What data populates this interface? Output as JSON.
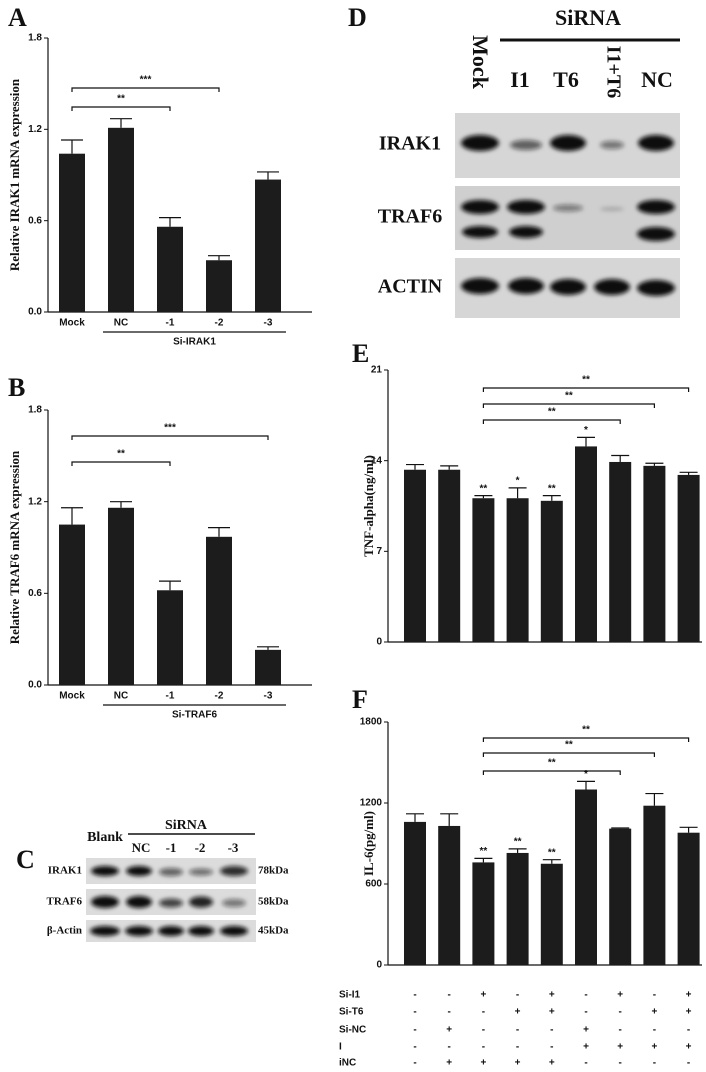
{
  "chart_data": [
    {
      "type": "bar",
      "panel": "A",
      "ylabel": "Relative IRAK1 mRNA expression",
      "color": "#1c1c1c",
      "categories": [
        "Mock",
        "NC",
        "-1",
        "-2",
        "-3"
      ],
      "values": [
        1.04,
        1.21,
        0.56,
        0.34,
        0.87
      ],
      "errors": [
        0.09,
        0.06,
        0.06,
        0.03,
        0.05
      ],
      "ylim": [
        0,
        1.8
      ],
      "yticks": [
        {
          "value": 0,
          "label": "0.0"
        },
        0.6,
        1.2,
        1.8
      ],
      "brackets": [
        {
          "label": "***",
          "from": 0,
          "to": 3
        },
        {
          "label": "**",
          "from": 0,
          "to": 2
        }
      ],
      "group": {
        "label": "Si-IRAK1",
        "from": 1,
        "to": 4
      }
    },
    {
      "type": "bar",
      "panel": "B",
      "ylabel": "Relative TRAF6 mRNA expression",
      "color": "#1c1c1c",
      "categories": [
        "Mock",
        "NC",
        "-1",
        "-2",
        "-3"
      ],
      "values": [
        1.05,
        1.16,
        0.62,
        0.97,
        0.23
      ],
      "errors": [
        0.11,
        0.04,
        0.06,
        0.06,
        0.02
      ],
      "ylim": [
        0,
        1.8
      ],
      "yticks": [
        {
          "value": 0,
          "label": "0.0"
        },
        0.6,
        1.2,
        1.8
      ],
      "brackets": [
        {
          "label": "***",
          "from": 0,
          "to": 4
        },
        {
          "label": "**",
          "from": 0,
          "to": 2
        }
      ],
      "group": {
        "label": "Si-TRAF6",
        "from": 1,
        "to": 4
      }
    },
    {
      "type": "bar",
      "panel": "E",
      "ylabel": "TNF-alpha(ng/ml)",
      "color": "#1c1c1c",
      "categories": [
        null,
        null,
        null,
        null,
        null,
        null,
        null,
        null,
        null
      ],
      "values": [
        13.3,
        13.3,
        11.1,
        11.1,
        10.9,
        15.1,
        13.9,
        13.6,
        12.9
      ],
      "errors": [
        0.4,
        0.3,
        0.2,
        0.8,
        0.4,
        0.7,
        0.5,
        0.2,
        0.2
      ],
      "star_labels": [
        null,
        null,
        "**",
        "*",
        "**",
        "*",
        null,
        null,
        null
      ],
      "ylim": [
        0,
        21
      ],
      "yticks": [
        0,
        7,
        14,
        21
      ],
      "brackets": [
        {
          "label": "**",
          "from": 2,
          "to": 8
        },
        {
          "label": "**",
          "from": 2,
          "to": 7
        },
        {
          "label": "**",
          "from": 2,
          "to": 6
        }
      ]
    },
    {
      "type": "bar",
      "panel": "F",
      "ylabel": "IL-6(pg/ml)",
      "color": "#1c1c1c",
      "categories": [
        null,
        null,
        null,
        null,
        null,
        null,
        null,
        null,
        null
      ],
      "values": [
        1060,
        1030,
        760,
        830,
        750,
        1300,
        1010,
        1180,
        980
      ],
      "errors": [
        60,
        90,
        30,
        30,
        30,
        60,
        5,
        90,
        40
      ],
      "star_labels": [
        null,
        null,
        "**",
        "**",
        "**",
        "*",
        null,
        null,
        null
      ],
      "ylim": [
        0,
        1800
      ],
      "yticks": [
        0,
        600,
        1200,
        1800
      ],
      "brackets": [
        {
          "label": "**",
          "from": 2,
          "to": 8
        },
        {
          "label": "**",
          "from": 2,
          "to": 7
        },
        {
          "label": "**",
          "from": 2,
          "to": 6
        }
      ],
      "condition_table": {
        "rows": [
          {
            "name": "Si-I1",
            "signs": [
              "-",
              "-",
              "+",
              "-",
              "+",
              "-",
              "+",
              "-",
              "+"
            ]
          },
          {
            "name": "Si-T6",
            "signs": [
              "-",
              "-",
              "-",
              "+",
              "+",
              "-",
              "-",
              "+",
              "+"
            ]
          },
          {
            "name": "Si-NC",
            "signs": [
              "-",
              "+",
              "-",
              "-",
              "-",
              "+",
              "-",
              "-",
              "-"
            ]
          },
          {
            "name": "I",
            "signs": [
              "-",
              "-",
              "-",
              "-",
              "-",
              "+",
              "+",
              "+",
              "+"
            ]
          },
          {
            "name": "iNC",
            "signs": [
              "-",
              "+",
              "+",
              "+",
              "+",
              "-",
              "-",
              "-",
              "-"
            ]
          }
        ]
      }
    }
  ],
  "blots": [
    {
      "panel": "C",
      "control": "Blank",
      "header": "SiRNA",
      "lanes": [
        "NC",
        "-1",
        "-2",
        "-3"
      ],
      "rows": [
        "IRAK1",
        "TRAF6",
        "β-Actin"
      ],
      "sizes": [
        "78kDa",
        "58kDa",
        "45kDa"
      ]
    },
    {
      "panel": "D",
      "control": "Mock",
      "header": "SiRNA",
      "lanes": [
        "I1",
        "T6",
        "I1+T6",
        "NC"
      ],
      "rows": [
        "IRAK1",
        "TRAF6",
        "ACTIN"
      ]
    }
  ]
}
